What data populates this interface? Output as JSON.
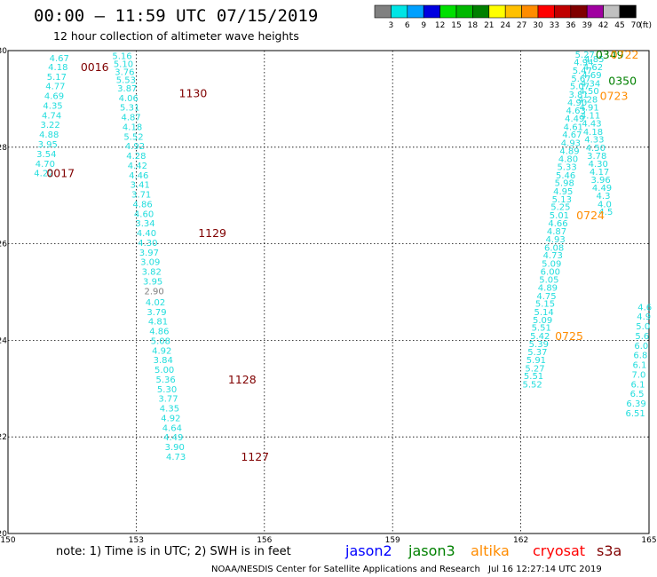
{
  "header": {
    "title": "00:00 – 11:59 UTC 07/15/2019",
    "subtitle": "12 hour collection of altimeter wave heights"
  },
  "legend": {
    "labels": [
      "3",
      "6",
      "9",
      "12",
      "15",
      "18",
      "21",
      "24",
      "27",
      "30",
      "33",
      "36",
      "39",
      "42",
      "45",
      "70"
    ],
    "unit": "(ft)",
    "colors": [
      "#808080",
      "#00e5e5",
      "#00a0ff",
      "#0000e0",
      "#00e000",
      "#00b800",
      "#008000",
      "#ffff00",
      "#ffc000",
      "#ff8c00",
      "#ff0000",
      "#c00000",
      "#800000",
      "#a000a0",
      "#c0c0c0",
      "#000000"
    ]
  },
  "footer": {
    "note": "note: 1) Time is in UTC; 2) SWH is in feet",
    "missions": [
      {
        "name": "jason2",
        "color": "#0000ff"
      },
      {
        "name": "jason3",
        "color": "#008000"
      },
      {
        "name": "altika",
        "color": "#ff8c00"
      },
      {
        "name": "cryosat",
        "color": "#ff0000"
      },
      {
        "name": "s3a",
        "color": "#800000"
      }
    ],
    "credit": "NOAA/NESDIS Center for Satellite Applications and Research",
    "timestamp": "Jul 16 12:27:14 UTC 2019"
  },
  "colors": {
    "swh": "#22dddd",
    "s3a": "#800000",
    "altika": "#ff8c00",
    "jason3": "#008000",
    "grid": "#000000"
  },
  "chart_data": {
    "type": "scatter",
    "xlim": [
      150,
      165
    ],
    "ylim": [
      20,
      30
    ],
    "x_ticks": [
      "150",
      "153",
      "156",
      "159",
      "162",
      "165"
    ],
    "y_ticks": [
      "20",
      "22",
      "24",
      "26",
      "28",
      "30"
    ],
    "grid": true,
    "series": [
      {
        "key": "track1",
        "points": [
          {
            "x": 152.67,
            "y": 29.9,
            "v": "5.16"
          },
          {
            "x": 152.7,
            "y": 29.73,
            "v": "5.10"
          },
          {
            "x": 152.73,
            "y": 29.57,
            "v": "3.76"
          },
          {
            "x": 152.76,
            "y": 29.4,
            "v": "5.53"
          },
          {
            "x": 152.79,
            "y": 29.23,
            "v": "3.87"
          },
          {
            "x": 152.82,
            "y": 29.03,
            "v": "4.06"
          },
          {
            "x": 152.85,
            "y": 28.83,
            "v": "5.31"
          },
          {
            "x": 152.88,
            "y": 28.63,
            "v": "4.87"
          },
          {
            "x": 152.91,
            "y": 28.43,
            "v": "4.18"
          },
          {
            "x": 152.94,
            "y": 28.23,
            "v": "5.52"
          },
          {
            "x": 152.97,
            "y": 28.03,
            "v": "4.92"
          },
          {
            "x": 153.0,
            "y": 27.83,
            "v": "4.28"
          },
          {
            "x": 153.03,
            "y": 27.63,
            "v": "4.42"
          },
          {
            "x": 153.06,
            "y": 27.43,
            "v": "4.46"
          },
          {
            "x": 153.09,
            "y": 27.23,
            "v": "3.41"
          },
          {
            "x": 153.12,
            "y": 27.03,
            "v": "3.71"
          },
          {
            "x": 153.15,
            "y": 26.83,
            "v": "4.86"
          },
          {
            "x": 153.18,
            "y": 26.63,
            "v": "4.60"
          },
          {
            "x": 153.21,
            "y": 26.43,
            "v": "3.34"
          },
          {
            "x": 153.24,
            "y": 26.23,
            "v": "4.40"
          },
          {
            "x": 153.27,
            "y": 26.03,
            "v": "4.30"
          },
          {
            "x": 153.3,
            "y": 25.83,
            "v": "3.97"
          },
          {
            "x": 153.33,
            "y": 25.63,
            "v": "3.09"
          },
          {
            "x": 153.36,
            "y": 25.43,
            "v": "3.82"
          },
          {
            "x": 153.39,
            "y": 25.23,
            "v": "3.95"
          },
          {
            "x": 153.42,
            "y": 25.03,
            "v": "2.90",
            "c": "#808080"
          },
          {
            "x": 153.45,
            "y": 24.8,
            "v": "4.02"
          },
          {
            "x": 153.48,
            "y": 24.6,
            "v": "3.79"
          },
          {
            "x": 153.51,
            "y": 24.4,
            "v": "4.81"
          },
          {
            "x": 153.54,
            "y": 24.2,
            "v": "4.86"
          },
          {
            "x": 153.57,
            "y": 24.0,
            "v": "5.08"
          },
          {
            "x": 153.6,
            "y": 23.8,
            "v": "4.92"
          },
          {
            "x": 153.63,
            "y": 23.6,
            "v": "3.84"
          },
          {
            "x": 153.66,
            "y": 23.4,
            "v": "5.00"
          },
          {
            "x": 153.69,
            "y": 23.2,
            "v": "5.36"
          },
          {
            "x": 153.72,
            "y": 23.0,
            "v": "5.30"
          },
          {
            "x": 153.75,
            "y": 22.8,
            "v": "3.77"
          },
          {
            "x": 153.78,
            "y": 22.6,
            "v": "4.35"
          },
          {
            "x": 153.81,
            "y": 22.4,
            "v": "4.92"
          },
          {
            "x": 153.84,
            "y": 22.2,
            "v": "4.64"
          },
          {
            "x": 153.87,
            "y": 22.0,
            "v": "4.49"
          },
          {
            "x": 153.9,
            "y": 21.8,
            "v": "3.90"
          },
          {
            "x": 153.93,
            "y": 21.6,
            "v": "4.73"
          }
        ]
      },
      {
        "key": "track2",
        "points": [
          {
            "x": 151.2,
            "y": 29.85,
            "v": "4.67"
          },
          {
            "x": 151.17,
            "y": 29.67,
            "v": "4.18"
          },
          {
            "x": 151.14,
            "y": 29.47,
            "v": "5.17"
          },
          {
            "x": 151.11,
            "y": 29.27,
            "v": "4.77"
          },
          {
            "x": 151.08,
            "y": 29.07,
            "v": "4.69"
          },
          {
            "x": 151.05,
            "y": 28.87,
            "v": "4.35"
          },
          {
            "x": 151.02,
            "y": 28.67,
            "v": "4.74"
          },
          {
            "x": 150.99,
            "y": 28.47,
            "v": "3.22"
          },
          {
            "x": 150.96,
            "y": 28.27,
            "v": "4.88"
          },
          {
            "x": 150.93,
            "y": 28.07,
            "v": "3.95"
          },
          {
            "x": 150.9,
            "y": 27.87,
            "v": "3.54"
          },
          {
            "x": 150.87,
            "y": 27.67,
            "v": "4.70"
          },
          {
            "x": 150.84,
            "y": 27.47,
            "v": "4.22"
          }
        ]
      },
      {
        "key": "track3",
        "points": [
          {
            "x": 163.5,
            "y": 29.93,
            "v": "5.27"
          },
          {
            "x": 163.47,
            "y": 29.77,
            "v": "4.94"
          },
          {
            "x": 163.44,
            "y": 29.6,
            "v": "5.47"
          },
          {
            "x": 163.41,
            "y": 29.43,
            "v": "5.67"
          },
          {
            "x": 163.38,
            "y": 29.27,
            "v": "5.07"
          },
          {
            "x": 163.35,
            "y": 29.1,
            "v": "3.81"
          },
          {
            "x": 163.32,
            "y": 28.93,
            "v": "4.90"
          },
          {
            "x": 163.29,
            "y": 28.77,
            "v": "4.63"
          },
          {
            "x": 163.26,
            "y": 28.6,
            "v": "4.49"
          },
          {
            "x": 163.23,
            "y": 28.43,
            "v": "4.61"
          },
          {
            "x": 163.2,
            "y": 28.27,
            "v": "4.67"
          },
          {
            "x": 163.17,
            "y": 28.1,
            "v": "4.93"
          },
          {
            "x": 163.14,
            "y": 27.93,
            "v": "4.89"
          },
          {
            "x": 163.11,
            "y": 27.77,
            "v": "4.80"
          },
          {
            "x": 163.08,
            "y": 27.6,
            "v": "5.33"
          },
          {
            "x": 163.05,
            "y": 27.43,
            "v": "5.46"
          },
          {
            "x": 163.02,
            "y": 27.27,
            "v": "5.98"
          },
          {
            "x": 162.99,
            "y": 27.1,
            "v": "4.95"
          },
          {
            "x": 162.96,
            "y": 26.93,
            "v": "5.13"
          },
          {
            "x": 162.93,
            "y": 26.77,
            "v": "5.25"
          },
          {
            "x": 162.9,
            "y": 26.6,
            "v": "5.01"
          },
          {
            "x": 162.87,
            "y": 26.43,
            "v": "4.66"
          },
          {
            "x": 162.84,
            "y": 26.27,
            "v": "4.87"
          },
          {
            "x": 162.81,
            "y": 26.1,
            "v": "4.93"
          },
          {
            "x": 162.78,
            "y": 25.93,
            "v": "6.08"
          },
          {
            "x": 162.75,
            "y": 25.77,
            "v": "4.73"
          },
          {
            "x": 162.72,
            "y": 25.6,
            "v": "5.09"
          },
          {
            "x": 162.69,
            "y": 25.43,
            "v": "6.00"
          },
          {
            "x": 162.66,
            "y": 25.27,
            "v": "5.05"
          },
          {
            "x": 162.63,
            "y": 25.1,
            "v": "4.89"
          },
          {
            "x": 162.6,
            "y": 24.93,
            "v": "4.75"
          },
          {
            "x": 162.57,
            "y": 24.77,
            "v": "5.15"
          },
          {
            "x": 162.54,
            "y": 24.6,
            "v": "5.14"
          },
          {
            "x": 162.51,
            "y": 24.43,
            "v": "5.09"
          },
          {
            "x": 162.48,
            "y": 24.27,
            "v": "5.51"
          },
          {
            "x": 162.45,
            "y": 24.1,
            "v": "5.42"
          },
          {
            "x": 162.42,
            "y": 23.93,
            "v": "5.39"
          },
          {
            "x": 162.39,
            "y": 23.77,
            "v": "5.37"
          },
          {
            "x": 162.36,
            "y": 23.6,
            "v": "5.91"
          },
          {
            "x": 162.33,
            "y": 23.43,
            "v": "5.27"
          },
          {
            "x": 162.3,
            "y": 23.27,
            "v": "5.51"
          },
          {
            "x": 162.27,
            "y": 23.1,
            "v": "5.52"
          }
        ]
      },
      {
        "key": "track4",
        "points": [
          {
            "x": 163.72,
            "y": 29.83,
            "v": "4.85"
          },
          {
            "x": 163.69,
            "y": 29.67,
            "v": "4.62"
          },
          {
            "x": 163.66,
            "y": 29.5,
            "v": "4.69"
          },
          {
            "x": 163.63,
            "y": 29.33,
            "v": "4.34"
          },
          {
            "x": 163.6,
            "y": 29.17,
            "v": "4.50"
          },
          {
            "x": 163.57,
            "y": 29.0,
            "v": "4.28"
          },
          {
            "x": 163.6,
            "y": 28.83,
            "v": "4.91"
          },
          {
            "x": 163.63,
            "y": 28.67,
            "v": "4.11"
          },
          {
            "x": 163.66,
            "y": 28.5,
            "v": "4.43"
          },
          {
            "x": 163.69,
            "y": 28.33,
            "v": "4.18"
          },
          {
            "x": 163.72,
            "y": 28.17,
            "v": "4.33"
          },
          {
            "x": 163.75,
            "y": 28.0,
            "v": "4.50"
          },
          {
            "x": 163.78,
            "y": 27.83,
            "v": "3.78"
          },
          {
            "x": 163.81,
            "y": 27.67,
            "v": "4.30"
          },
          {
            "x": 163.84,
            "y": 27.5,
            "v": "4.17"
          },
          {
            "x": 163.87,
            "y": 27.33,
            "v": "3.96"
          },
          {
            "x": 163.9,
            "y": 27.17,
            "v": "4.49"
          },
          {
            "x": 163.93,
            "y": 27.0,
            "v": "4.3"
          },
          {
            "x": 163.96,
            "y": 26.83,
            "v": "4.0"
          },
          {
            "x": 163.99,
            "y": 26.67,
            "v": "4.5"
          }
        ]
      },
      {
        "key": "track5",
        "points": [
          {
            "x": 164.9,
            "y": 24.7,
            "v": "4.6"
          },
          {
            "x": 164.88,
            "y": 24.5,
            "v": "4.9"
          },
          {
            "x": 164.86,
            "y": 24.3,
            "v": "5.0"
          },
          {
            "x": 164.84,
            "y": 24.1,
            "v": "5.6"
          },
          {
            "x": 164.82,
            "y": 23.9,
            "v": "6.0"
          },
          {
            "x": 164.8,
            "y": 23.7,
            "v": "6.8"
          },
          {
            "x": 164.78,
            "y": 23.5,
            "v": "6.1"
          },
          {
            "x": 164.76,
            "y": 23.3,
            "v": "7.0"
          },
          {
            "x": 164.74,
            "y": 23.1,
            "v": "6.1"
          },
          {
            "x": 164.72,
            "y": 22.9,
            "v": "6.5"
          },
          {
            "x": 164.7,
            "y": 22.7,
            "v": "6.39"
          },
          {
            "x": 164.68,
            "y": 22.5,
            "v": "6.51"
          }
        ]
      }
    ],
    "time_labels": [
      {
        "x": 151.7,
        "y": 29.67,
        "text": "0016",
        "color": "#800000"
      },
      {
        "x": 150.9,
        "y": 27.47,
        "text": "0017",
        "color": "#800000"
      },
      {
        "x": 154.0,
        "y": 29.13,
        "text": "1130",
        "color": "#800000"
      },
      {
        "x": 154.45,
        "y": 26.23,
        "text": "1129",
        "color": "#800000"
      },
      {
        "x": 155.15,
        "y": 23.2,
        "text": "1128",
        "color": "#800000"
      },
      {
        "x": 155.45,
        "y": 21.6,
        "text": "1127",
        "color": "#800000"
      },
      {
        "x": 163.75,
        "y": 29.93,
        "text": "0349",
        "color": "#008000"
      },
      {
        "x": 164.1,
        "y": 29.93,
        "text": "0722",
        "color": "#ff8c00"
      },
      {
        "x": 164.05,
        "y": 29.38,
        "text": "0350",
        "color": "#008000"
      },
      {
        "x": 163.85,
        "y": 29.07,
        "text": "0723",
        "color": "#ff8c00"
      },
      {
        "x": 163.3,
        "y": 26.6,
        "text": "0724",
        "color": "#ff8c00"
      },
      {
        "x": 162.8,
        "y": 24.1,
        "text": "0725",
        "color": "#ff8c00"
      }
    ]
  }
}
